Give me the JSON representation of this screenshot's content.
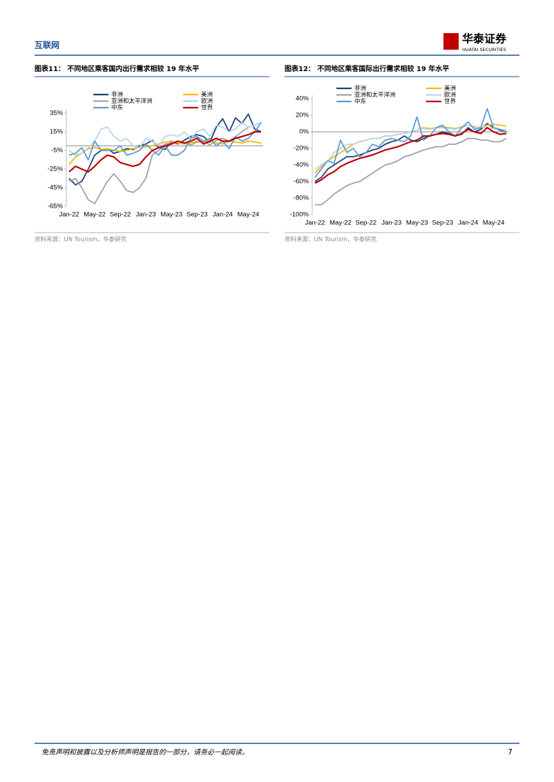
{
  "header": {
    "section": "互联网",
    "brand": "华泰证券",
    "brand_en": "HUATAI SECURITIES"
  },
  "sources": [
    "资料来源：UN Tourism，华泰研究",
    "资料来源：UN Tourism，华泰研究"
  ],
  "footer": {
    "disclaimer": "免责声明和披露以及分析师声明是报告的一部分，请务必一起阅读。",
    "page": "7"
  },
  "chart_data": [
    {
      "type": "line",
      "title": "图表11：  不同地区乘客国内出行需求相较 19 年水平",
      "categories": [
        "Jan-22",
        null,
        null,
        null,
        "May-22",
        null,
        null,
        null,
        "Sep-22",
        null,
        null,
        null,
        "Jan-23",
        null,
        null,
        null,
        "May-23",
        null,
        null,
        null,
        "Sep-23",
        null,
        null,
        null,
        "Jan-24",
        null,
        null,
        null,
        "May-24",
        null,
        null
      ],
      "ylim": [
        -65,
        35
      ],
      "yticks": [
        {
          "value": -65,
          "label": "-65%"
        },
        {
          "value": -45,
          "label": "-45%"
        },
        {
          "value": -25,
          "label": "-25%"
        },
        {
          "value": -5,
          "label": "-5%"
        },
        {
          "value": 15,
          "label": "15%"
        },
        {
          "value": 35,
          "label": "35%"
        }
      ],
      "series": [
        {
          "name": "非洲",
          "color": "#1f3d7a",
          "values": [
            -35,
            -42,
            -38,
            -25,
            -10,
            -5,
            -3,
            -8,
            -6,
            -3,
            -4,
            0,
            2,
            6,
            -2,
            -4,
            5,
            2,
            6,
            10,
            12,
            10,
            4,
            20,
            29,
            15,
            30,
            24,
            34,
            18,
            15
          ]
        },
        {
          "name": "美洲",
          "color": "#f5b800",
          "values": [
            -20,
            -12,
            -8,
            -3,
            -2,
            -4,
            -3,
            -5,
            -6,
            -5,
            -3,
            -2,
            -1,
            0,
            2,
            4,
            5,
            3,
            2,
            3,
            5,
            4,
            6,
            3,
            2,
            5,
            4,
            3,
            5,
            4,
            3
          ]
        },
        {
          "name": "亚洲和太平洋洲",
          "color": "#a0a0a0",
          "values": [
            -38,
            -35,
            -45,
            -58,
            -62,
            -50,
            -38,
            -30,
            -38,
            -48,
            -50,
            -45,
            -35,
            -10,
            -5,
            2,
            3,
            5,
            3,
            1,
            4,
            5,
            1,
            6,
            8,
            5,
            10,
            15,
            20,
            22,
            25
          ]
        },
        {
          "name": "欧洲",
          "color": "#b8d4ea",
          "values": [
            -5,
            -10,
            -8,
            -2,
            5,
            18,
            20,
            10,
            5,
            8,
            0,
            -2,
            8,
            5,
            0,
            10,
            12,
            10,
            15,
            8,
            15,
            18,
            10,
            22,
            20,
            15,
            18,
            25,
            20,
            22,
            25
          ]
        },
        {
          "name": "中东",
          "color": "#5b9bd5",
          "values": [
            -10,
            -8,
            -2,
            -15,
            5,
            -5,
            -5,
            -5,
            0,
            -10,
            -8,
            -5,
            2,
            -5,
            -10,
            0,
            -10,
            -10,
            -5,
            8,
            10,
            5,
            8,
            0,
            5,
            -3,
            10,
            5,
            8,
            15,
            25
          ]
        },
        {
          "name": "世界",
          "color": "#c00000",
          "values": [
            -28,
            -22,
            -25,
            -28,
            -22,
            -15,
            -10,
            -12,
            -18,
            -20,
            -22,
            -20,
            -12,
            -5,
            -2,
            0,
            2,
            5,
            3,
            5,
            8,
            2,
            5,
            8,
            5,
            5,
            8,
            10,
            12,
            15,
            15
          ]
        }
      ]
    },
    {
      "type": "line",
      "title": "图表12：  不同地区乘客国际出行需求相较 19 年水平",
      "categories": [
        "Jan-22",
        null,
        null,
        null,
        "May-22",
        null,
        null,
        null,
        "Sep-22",
        null,
        null,
        null,
        "Jan-23",
        null,
        null,
        null,
        "May-23",
        null,
        null,
        null,
        "Sep-23",
        null,
        null,
        null,
        "Jan-24",
        null,
        null,
        null,
        "May-24",
        null,
        null
      ],
      "ylim": [
        -100,
        40
      ],
      "yticks": [
        {
          "value": -100,
          "label": "-100%"
        },
        {
          "value": -80,
          "label": "-80%"
        },
        {
          "value": -60,
          "label": "-60%"
        },
        {
          "value": -40,
          "label": "-40%"
        },
        {
          "value": -20,
          "label": "-20%"
        },
        {
          "value": 0,
          "label": "0%"
        },
        {
          "value": 20,
          "label": "20%"
        },
        {
          "value": 40,
          "label": "40%"
        }
      ],
      "series": [
        {
          "name": "非洲",
          "color": "#1f3d7a",
          "values": [
            -60,
            -55,
            -45,
            -40,
            -35,
            -30,
            -30,
            -28,
            -25,
            -22,
            -20,
            -15,
            -12,
            -10,
            -5,
            -10,
            -12,
            -8,
            -5,
            -3,
            0,
            -2,
            -5,
            -3,
            5,
            0,
            3,
            10,
            5,
            2,
            0
          ]
        },
        {
          "name": "美洲",
          "color": "#f5b800",
          "values": [
            -50,
            -42,
            -35,
            -30,
            -25,
            -20,
            -15,
            -12,
            -10,
            -8,
            -8,
            -5,
            -5,
            -3,
            -2,
            0,
            2,
            5,
            4,
            5,
            6,
            5,
            4,
            6,
            8,
            6,
            5,
            8,
            9,
            8,
            7
          ]
        },
        {
          "name": "亚洲和太平洋洲",
          "color": "#a0a0a0",
          "values": [
            -88,
            -88,
            -82,
            -75,
            -70,
            -65,
            -62,
            -60,
            -55,
            -50,
            -45,
            -40,
            -38,
            -35,
            -30,
            -28,
            -25,
            -22,
            -20,
            -18,
            -18,
            -15,
            -15,
            -12,
            -8,
            -8,
            -10,
            -10,
            -12,
            -12,
            -8
          ]
        },
        {
          "name": "欧洲",
          "color": "#b8d4ea",
          "values": [
            -45,
            -40,
            -35,
            -25,
            -20,
            -15,
            -15,
            -12,
            -10,
            -8,
            -8,
            -5,
            -5,
            -3,
            -2,
            0,
            2,
            4,
            3,
            5,
            5,
            4,
            3,
            5,
            8,
            5,
            6,
            5,
            4,
            3,
            2
          ]
        },
        {
          "name": "中东",
          "color": "#5b9bd5",
          "values": [
            -55,
            -45,
            -35,
            -38,
            -10,
            -25,
            -20,
            -30,
            -25,
            -15,
            -18,
            -10,
            -8,
            -10,
            -12,
            -5,
            18,
            -10,
            -5,
            5,
            8,
            0,
            -5,
            5,
            12,
            3,
            5,
            28,
            5,
            3,
            0
          ]
        },
        {
          "name": "世界",
          "color": "#c00000",
          "values": [
            -62,
            -58,
            -52,
            -48,
            -42,
            -38,
            -35,
            -32,
            -30,
            -28,
            -25,
            -22,
            -20,
            -18,
            -15,
            -12,
            -10,
            -5,
            -5,
            -3,
            -2,
            -3,
            -5,
            -2,
            3,
            0,
            -2,
            5,
            0,
            -3,
            -2
          ]
        }
      ]
    }
  ]
}
